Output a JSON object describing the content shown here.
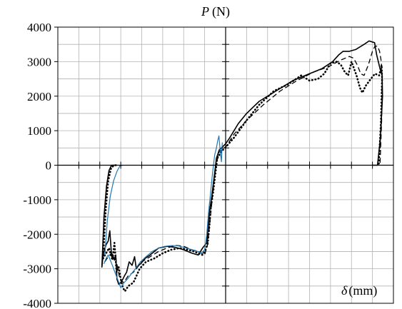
{
  "chart_data": {
    "type": "line",
    "title": "",
    "ylabel": {
      "symbol": "P",
      "unit": "(N)"
    },
    "xlabel": {
      "symbol": "δ",
      "unit": "(mm)"
    },
    "ylim": [
      -4000,
      4000
    ],
    "xlim": [
      -40,
      40
    ],
    "y_ticks": [
      4000,
      3000,
      2000,
      1000,
      0,
      -1000,
      -2000,
      -3000,
      -4000
    ],
    "y_tick_labels": [
      "4000",
      "3000",
      "2000",
      "1000",
      "0",
      "-1000",
      "-2000",
      "-3000",
      "-4000"
    ],
    "grid": true,
    "axes_cross_at_origin": true,
    "colors": {
      "black": "#000000",
      "blue": "#1f78b4",
      "grid": "#b3b3b3"
    },
    "series": [
      {
        "style": "solid",
        "color": "#000000",
        "x": [
          -29.5,
          -29.3,
          -29.0,
          -28.5,
          -28.0,
          -27.6,
          -27.2,
          -27.0,
          -26.8,
          -26.5,
          -26.2,
          -25.9,
          -25.5,
          -25.0,
          -24.5,
          -24.1,
          -23.6,
          -23.0,
          -22.3,
          -21.7,
          -21.3,
          -20.8,
          -20.2,
          -19.2,
          -18.0,
          -16.0,
          -14.0,
          -12.0,
          -10.0,
          -8.0,
          -6.5,
          -5.5,
          -4.5,
          -3.8,
          -3.3,
          -2.8,
          -2.2,
          -1.5,
          -1.0,
          0.0,
          1.0,
          2.0,
          3.0,
          5.0,
          8.0,
          12.0,
          16.0,
          20.0,
          23.0,
          25.5,
          27.0,
          28.0,
          29.5,
          31.0,
          33.0,
          34.2,
          35.5,
          36.0,
          36.8,
          37.3,
          37.4,
          36.9,
          36.2,
          35.1
        ],
        "y": [
          -2950,
          -2700,
          -2500,
          -2300,
          -2200,
          -1900,
          -2600,
          -2700,
          -2650,
          -2750,
          -2600,
          -3300,
          -3450,
          -3400,
          -3300,
          -3200,
          -3100,
          -2800,
          -2900,
          -2650,
          -3000,
          -2900,
          -2850,
          -2700,
          -2600,
          -2400,
          -2350,
          -2380,
          -2450,
          -2550,
          -2600,
          -2400,
          -2250,
          -1300,
          -900,
          -400,
          200,
          450,
          500,
          620,
          800,
          1000,
          1200,
          1500,
          1850,
          2150,
          2450,
          2650,
          2800,
          3000,
          3200,
          3300,
          3300,
          3350,
          3500,
          3600,
          3550,
          3200,
          2800,
          2600,
          2000,
          800,
          0,
          0
        ]
      },
      {
        "style": "solid",
        "color": "#000000",
        "x": [
          -29.5,
          -29.0,
          -28.4,
          -27.8,
          -27.2,
          -26.6,
          -26.0
        ],
        "y": [
          -2950,
          -1500,
          -600,
          -150,
          0,
          0,
          0
        ]
      },
      {
        "style": "dotted",
        "color": "#000000",
        "x": [
          -29.2,
          -28.5,
          -27.8,
          -27.0,
          -26.5,
          -26.0,
          -25.5,
          -25.0,
          -24.5,
          -24.0,
          -23.2,
          -22.0,
          -20.5,
          -19.0,
          -17.0,
          -15.0,
          -13.0,
          -11.0,
          -9.0,
          -7.5,
          -6.5,
          -5.5,
          -5.0,
          -4.3,
          -3.9,
          -3.5,
          -3.0,
          -2.5,
          -2.0,
          -1.0,
          0.0,
          2.0,
          5.0,
          8.0,
          11.5,
          15.0,
          18.0,
          20.0,
          22.0,
          23.5,
          25.0,
          26.5,
          27.5,
          28.4,
          29.2,
          30.0,
          31.2,
          32.0,
          32.6,
          33.4,
          34.6,
          35.6,
          36.6,
          37.0,
          37.2,
          37.3,
          37.0,
          36.5
        ],
        "y": [
          -2700,
          -2550,
          -2400,
          -2750,
          -2250,
          -3100,
          -2950,
          -3300,
          -3550,
          -3650,
          -3500,
          -3400,
          -3000,
          -2800,
          -2700,
          -2550,
          -2450,
          -2400,
          -2450,
          -2500,
          -2550,
          -2600,
          -2500,
          -2300,
          -1800,
          -1200,
          -800,
          -300,
          200,
          400,
          520,
          800,
          1300,
          1750,
          2150,
          2350,
          2600,
          2450,
          2500,
          2650,
          2950,
          3000,
          2900,
          2700,
          2600,
          3000,
          2600,
          2250,
          2100,
          2300,
          2500,
          2650,
          2600,
          2800,
          2900,
          2500,
          1200,
          0
        ]
      },
      {
        "style": "dotted",
        "color": "#000000",
        "x": [
          -29.2,
          -28.6,
          -28.0,
          -27.3,
          -26.6,
          -26.0
        ],
        "y": [
          -2700,
          -1300,
          -450,
          -80,
          0,
          0
        ]
      },
      {
        "style": "dashed",
        "color": "#000000",
        "x": [
          -28.8,
          -28.0,
          -27.2,
          -26.2,
          -25.2,
          -24.3,
          -23.2,
          -22.0,
          -20.0,
          -18.0,
          -16.0,
          -14.0,
          -12.0,
          -10.0,
          -8.0,
          -6.5,
          -5.0,
          -4.3,
          -3.8,
          -3.3,
          -2.8,
          -2.3,
          -1.5,
          0.0,
          2.0,
          5.0,
          9.0,
          13.0,
          17.0,
          21.0,
          24.5,
          27.5,
          29.5,
          30.5,
          31.4,
          32.2,
          33.0,
          34.0,
          35.0,
          35.6,
          36.2,
          36.7,
          37.1,
          37.3,
          37.2,
          36.8
        ],
        "y": [
          -2800,
          -2650,
          -2550,
          -2700,
          -3300,
          -3400,
          -3200,
          -3100,
          -2800,
          -2650,
          -2500,
          -2400,
          -2320,
          -2350,
          -2450,
          -2500,
          -2600,
          -2300,
          -1700,
          -1100,
          -500,
          0,
          400,
          520,
          900,
          1300,
          1750,
          2150,
          2450,
          2700,
          2850,
          3050,
          3150,
          3100,
          2900,
          2650,
          2600,
          2900,
          3300,
          3450,
          3450,
          3300,
          3000,
          2600,
          1300,
          0
        ]
      },
      {
        "style": "solid",
        "color": "#1f78b4",
        "x": [
          -29.0,
          -28.5,
          -28.0,
          -27.5,
          -27.0,
          -26.4,
          -25.6,
          -25.0,
          -24.2,
          -23.4,
          -22.5,
          -21.5,
          -20.3,
          -19.0,
          -17.5,
          -16.0,
          -14.5,
          -13.0,
          -11.5,
          -10.0,
          -8.5,
          -7.0,
          -5.8,
          -5.0,
          -4.5,
          -4.1,
          -3.6,
          -3.1,
          -2.6,
          -2.2,
          -1.9,
          -1.6,
          -1.3,
          -1.0,
          -0.9,
          -0.8
        ],
        "y": [
          -2850,
          -2700,
          -2600,
          -2750,
          -2900,
          -3100,
          -3350,
          -3550,
          -3400,
          -3300,
          -3150,
          -3000,
          -2800,
          -2650,
          -2500,
          -2400,
          -2350,
          -2330,
          -2330,
          -2380,
          -2430,
          -2480,
          -2550,
          -2450,
          -2000,
          -1400,
          -800,
          -200,
          300,
          500,
          700,
          850,
          400,
          100,
          400,
          650
        ]
      },
      {
        "style": "solid",
        "color": "#1f78b4",
        "x": [
          -28.8,
          -28.2,
          -27.5,
          -26.7,
          -25.9,
          -25.2,
          -24.5
        ],
        "y": [
          -2600,
          -1600,
          -900,
          -450,
          -180,
          -20,
          0
        ]
      }
    ]
  }
}
